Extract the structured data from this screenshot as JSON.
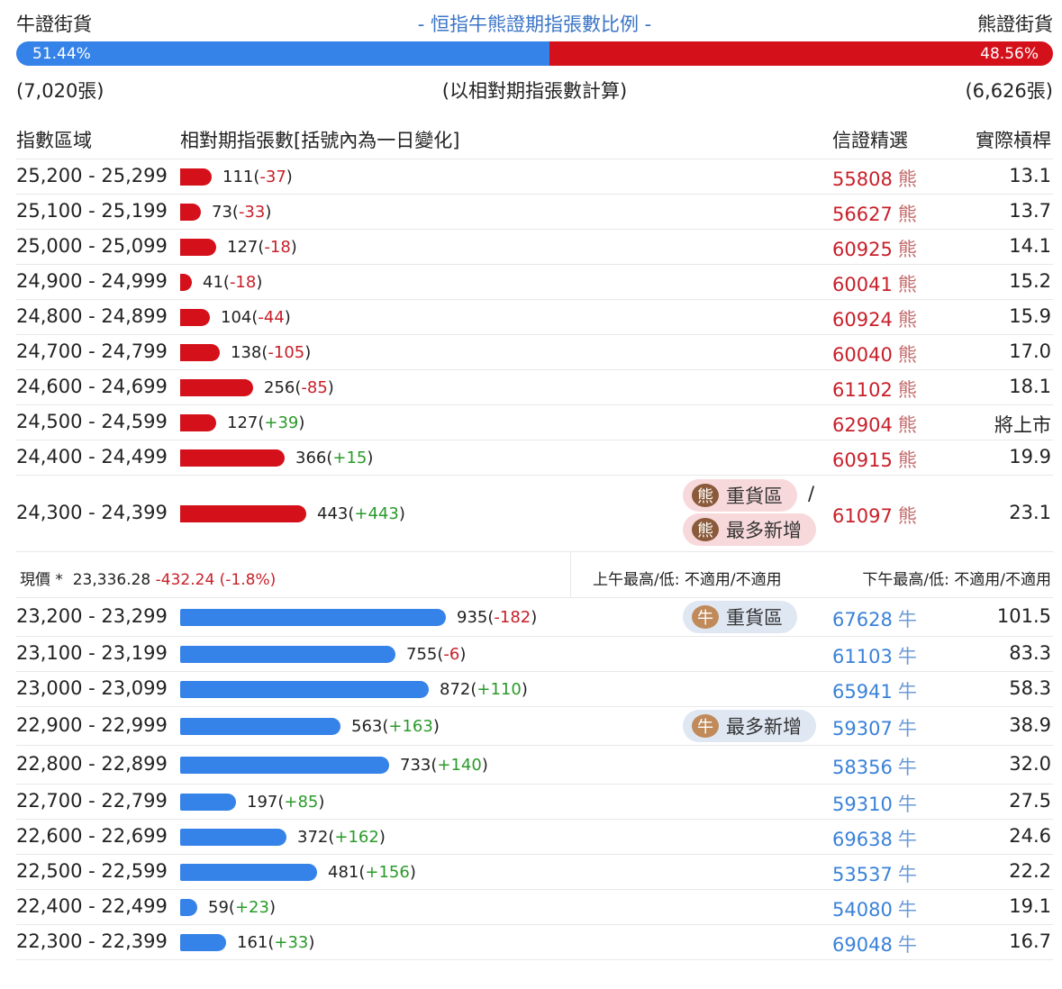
{
  "top": {
    "bull_label": "牛證街貨",
    "title": "- 恒指牛熊證期指張數比例 -",
    "bear_label": "熊證街貨",
    "bull_pct": "51.44%",
    "bear_pct": "48.56%",
    "bull_fraction": 0.5144,
    "bull_count": "(7,020張)",
    "calc_note": "(以相對期指張數計算)",
    "bear_count": "(6,626張)"
  },
  "header": {
    "col_range": "指數區域",
    "col_contracts": "相對期指張數[括號內為一日變化]",
    "col_warrant": "信證精選",
    "col_leverage": "實際槓桿"
  },
  "colors": {
    "bear": "#d4101a",
    "bull": "#3582e8",
    "up": "#2a9a2a",
    "down": "#c8202a"
  },
  "bear_rows": [
    {
      "range": "25,200 - 25,299",
      "count": "111",
      "change": "-37",
      "value": 111,
      "warrant": "55808",
      "icon": "熊",
      "lev": "13.1"
    },
    {
      "range": "25,100 - 25,199",
      "count": "73",
      "change": "-33",
      "value": 73,
      "warrant": "56627",
      "icon": "熊",
      "lev": "13.7"
    },
    {
      "range": "25,000 - 25,099",
      "count": "127",
      "change": "-18",
      "value": 127,
      "warrant": "60925",
      "icon": "熊",
      "lev": "14.1"
    },
    {
      "range": "24,900 - 24,999",
      "count": "41",
      "change": "-18",
      "value": 41,
      "warrant": "60041",
      "icon": "熊",
      "lev": "15.2"
    },
    {
      "range": "24,800 - 24,899",
      "count": "104",
      "change": "-44",
      "value": 104,
      "warrant": "60924",
      "icon": "熊",
      "lev": "15.9"
    },
    {
      "range": "24,700 - 24,799",
      "count": "138",
      "change": "-105",
      "value": 138,
      "warrant": "60040",
      "icon": "熊",
      "lev": "17.0"
    },
    {
      "range": "24,600 - 24,699",
      "count": "256",
      "change": "-85",
      "value": 256,
      "warrant": "61102",
      "icon": "熊",
      "lev": "18.1"
    },
    {
      "range": "24,500 - 24,599",
      "count": "127",
      "change": "+39",
      "value": 127,
      "warrant": "62904",
      "icon": "熊",
      "lev": "將上市"
    },
    {
      "range": "24,400 - 24,499",
      "count": "366",
      "change": "+15",
      "value": 366,
      "warrant": "60915",
      "icon": "熊",
      "lev": "19.9"
    },
    {
      "range": "24,300 - 24,399",
      "count": "443",
      "change": "+443",
      "value": 443,
      "warrant": "61097",
      "icon": "熊",
      "lev": "23.1",
      "tags": [
        "重貨區",
        "最多新增"
      ],
      "tag_sep": "/"
    }
  ],
  "price": {
    "label": "現價 *",
    "value": "23,336.28",
    "change": "-432.24 (-1.8%)",
    "am": "上午最高/低: 不適用/不適用",
    "pm": "下午最高/低: 不適用/不適用"
  },
  "bull_rows": [
    {
      "range": "23,200 - 23,299",
      "count": "935",
      "change": "-182",
      "value": 935,
      "warrant": "67628",
      "icon": "牛",
      "lev": "101.5",
      "tags": [
        "重貨區"
      ]
    },
    {
      "range": "23,100 - 23,199",
      "count": "755",
      "change": "-6",
      "value": 755,
      "warrant": "61103",
      "icon": "牛",
      "lev": "83.3"
    },
    {
      "range": "23,000 - 23,099",
      "count": "872",
      "change": "+110",
      "value": 872,
      "warrant": "65941",
      "icon": "牛",
      "lev": "58.3"
    },
    {
      "range": "22,900 - 22,999",
      "count": "563",
      "change": "+163",
      "value": 563,
      "warrant": "59307",
      "icon": "牛",
      "lev": "38.9",
      "tags": [
        "最多新增"
      ]
    },
    {
      "range": "22,800 - 22,899",
      "count": "733",
      "change": "+140",
      "value": 733,
      "warrant": "58356",
      "icon": "牛",
      "lev": "32.0"
    },
    {
      "range": "22,700 - 22,799",
      "count": "197",
      "change": "+85",
      "value": 197,
      "warrant": "59310",
      "icon": "牛",
      "lev": "27.5"
    },
    {
      "range": "22,600 - 22,699",
      "count": "372",
      "change": "+162",
      "value": 372,
      "warrant": "69638",
      "icon": "牛",
      "lev": "24.6"
    },
    {
      "range": "22,500 - 22,599",
      "count": "481",
      "change": "+156",
      "value": 481,
      "warrant": "53537",
      "icon": "牛",
      "lev": "22.2"
    },
    {
      "range": "22,400 - 22,499",
      "count": "59",
      "change": "+23",
      "value": 59,
      "warrant": "54080",
      "icon": "牛",
      "lev": "19.1"
    },
    {
      "range": "22,300 - 22,399",
      "count": "161",
      "change": "+33",
      "value": 161,
      "warrant": "69048",
      "icon": "牛",
      "lev": "16.7"
    }
  ]
}
